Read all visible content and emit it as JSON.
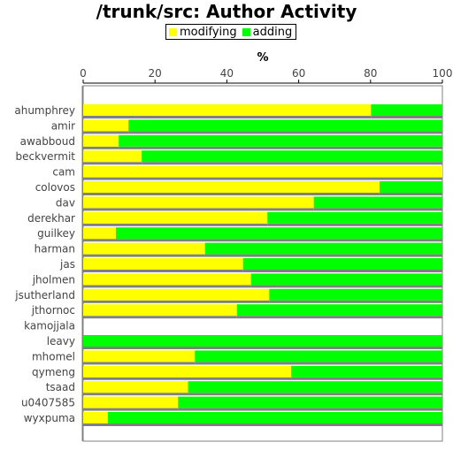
{
  "chart_data": {
    "type": "bar",
    "orientation": "horizontal",
    "stacked": true,
    "title": "/trunk/src: Author Activity",
    "xlabel": "%",
    "ylabel": "",
    "xlim": [
      0,
      100
    ],
    "xticks": [
      0,
      20,
      40,
      60,
      80,
      100
    ],
    "axis_position": "top",
    "legend_position": "top-center",
    "categories": [
      "ahumphrey",
      "amir",
      "awabboud",
      "beckvermit",
      "cam",
      "colovos",
      "dav",
      "derekhar",
      "guilkey",
      "harman",
      "jas",
      "jholmen",
      "jsutherland",
      "jthornoc",
      "kamojjala",
      "leavy",
      "mhomel",
      "qymeng",
      "tsaad",
      "u0407585",
      "wyxpuma"
    ],
    "series": [
      {
        "name": "modifying",
        "color": "#ffff00",
        "values": [
          80.1,
          12.6,
          9.9,
          16.3,
          100,
          82.5,
          64.2,
          51.3,
          9.1,
          33.9,
          44.5,
          46.7,
          51.8,
          42.8,
          0,
          0,
          31.1,
          57.9,
          29.2,
          26.4,
          6.9
        ]
      },
      {
        "name": "adding",
        "color": "#00ff00",
        "values": [
          19.9,
          87.4,
          90.1,
          83.7,
          0,
          17.5,
          35.8,
          48.7,
          90.9,
          66.1,
          55.5,
          53.3,
          48.2,
          57.2,
          0,
          100,
          68.9,
          42.1,
          70.8,
          73.6,
          93.1
        ]
      }
    ]
  }
}
